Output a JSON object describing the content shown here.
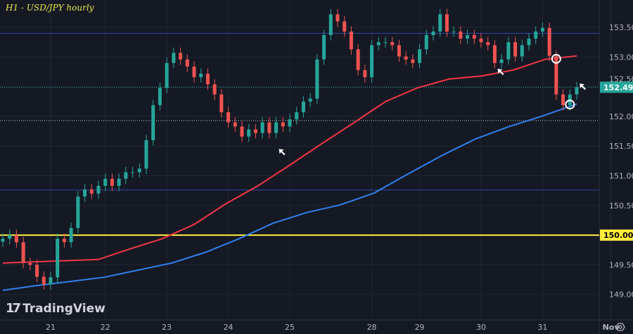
{
  "title": "H1 - USD/JPY hourly",
  "logo_text": "TradingView",
  "settings_icon": "gear-icon",
  "colors": {
    "up": "#26a69a",
    "down": "#ef5350",
    "ma_fast": "#f23645",
    "ma_slow": "#2f80ed",
    "level": "#2f45a8",
    "yellow": "#ffeb3b",
    "bg": "#151924",
    "grid": "#232733"
  },
  "chart_data": {
    "type": "candlestick",
    "title": "H1 - USD/JPY hourly",
    "ylim": [
      148.85,
      153.95
    ],
    "y_ticks": [
      "153.500",
      "153.000",
      "152.500",
      "152.000",
      "151.500",
      "151.000",
      "150.500",
      "150.000",
      "149.500",
      "149.000"
    ],
    "y_tick_values": [
      153.5,
      153.0,
      152.5,
      152.0,
      151.5,
      151.0,
      150.5,
      150.0,
      149.5,
      149.0
    ],
    "x_ticks": [
      "21",
      "22",
      "23",
      "24",
      "25",
      "28",
      "29",
      "30",
      "31",
      "Nov"
    ],
    "x_tick_candle_index": [
      7,
      15,
      24,
      33,
      42,
      54,
      61,
      70,
      79,
      89
    ],
    "closes": [
      149.94,
      150.0,
      149.88,
      149.53,
      149.5,
      149.3,
      149.17,
      149.29,
      149.94,
      149.88,
      150.12,
      150.65,
      150.77,
      150.7,
      150.83,
      150.95,
      150.83,
      150.95,
      151.06,
      151.06,
      151.12,
      151.6,
      152.19,
      152.48,
      152.9,
      153.07,
      152.96,
      152.84,
      152.66,
      152.72,
      152.54,
      152.37,
      152.07,
      151.9,
      151.83,
      151.66,
      151.78,
      151.72,
      151.9,
      151.72,
      151.9,
      151.83,
      151.95,
      152.07,
      152.25,
      152.3,
      152.96,
      153.37,
      153.72,
      153.6,
      153.43,
      153.13,
      152.78,
      152.66,
      153.2,
      153.25,
      153.25,
      153.2,
      153.01,
      152.96,
      152.9,
      153.13,
      153.37,
      153.43,
      153.72,
      153.43,
      153.43,
      153.31,
      153.37,
      153.31,
      153.25,
      153.2,
      152.9,
      152.96,
      153.25,
      153.01,
      153.2,
      153.31,
      153.43,
      153.49,
      153.02,
      152.37,
      152.19,
      152.37,
      152.491
    ],
    "ma_fast": [
      149.53,
      149.55,
      149.57,
      149.59,
      149.77,
      149.94,
      150.18,
      150.53,
      150.83,
      151.18,
      151.54,
      151.89,
      152.25,
      152.48,
      152.63,
      152.68,
      152.78,
      152.96,
      153.02
    ],
    "ma_slow": [
      149.07,
      149.15,
      149.22,
      149.29,
      149.41,
      149.53,
      149.71,
      149.94,
      150.2,
      150.38,
      150.51,
      150.71,
      151.03,
      151.34,
      151.62,
      151.83,
      152.01,
      152.21
    ],
    "horizontal_levels": [
      {
        "value": 153.4,
        "style": "solid",
        "color": "level"
      },
      {
        "value": 150.76,
        "style": "solid",
        "color": "level"
      },
      {
        "value": 150.0,
        "style": "solid",
        "color": "yellow",
        "label": "150.000"
      },
      {
        "value": 152.491,
        "style": "dotted",
        "color": "up",
        "label": "152.491"
      },
      {
        "value": 151.93,
        "style": "dotted",
        "color": "white"
      }
    ],
    "current_price": "152.491",
    "annotations": [
      {
        "type": "arrow",
        "candle_index": 40,
        "price": 151.5
      },
      {
        "type": "arrow",
        "candle_index": 72,
        "price": 152.85
      },
      {
        "type": "arrow",
        "candle_index": 84,
        "price": 152.6
      },
      {
        "type": "circle",
        "candle_index": 81,
        "price": 152.97
      },
      {
        "type": "circle",
        "candle_index": 83,
        "price": 152.2
      }
    ]
  }
}
